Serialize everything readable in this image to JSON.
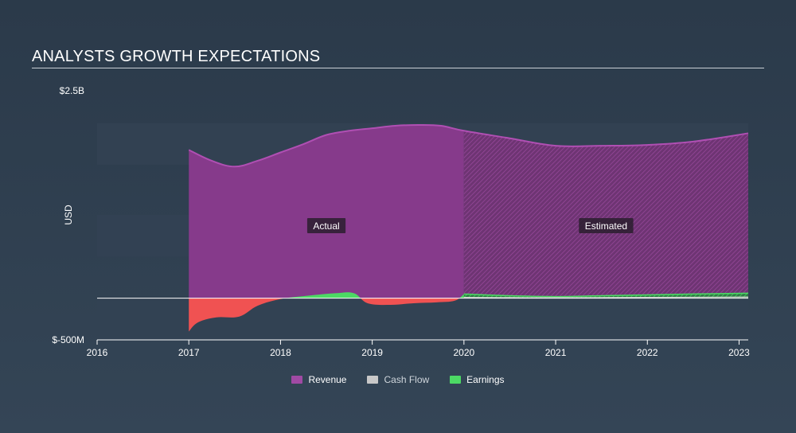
{
  "title": "ANALYSTS GROWTH EXPECTATIONS",
  "colors": {
    "revenue": "#8b3a8e",
    "revenue_line": "#b04fb3",
    "earnings_pos": "#4cd964",
    "earnings_neg": "#f05252",
    "cashflow": "#c8c8c8",
    "band": "#324253"
  },
  "chart_data": {
    "type": "area",
    "title": "ANALYSTS GROWTH EXPECTATIONS",
    "ylabel": "USD",
    "y_tick_labels": [
      "$2.5B",
      "$-500M"
    ],
    "ylim": [
      -500,
      2500
    ],
    "y_unit": "USD millions",
    "xlim": [
      2016,
      2023.1
    ],
    "x_ticks": [
      2016,
      2017,
      2018,
      2019,
      2020,
      2021,
      2022,
      2023
    ],
    "x_tick_labels": [
      "2016",
      "2017",
      "2018",
      "2019",
      "2020",
      "2021",
      "2022",
      "2023"
    ],
    "actual_end": 2020,
    "annotations": [
      "Actual",
      "Estimated"
    ],
    "legend": [
      "Revenue",
      "Cash Flow",
      "Earnings"
    ],
    "series": [
      {
        "name": "Revenue",
        "x": [
          2017,
          2017.25,
          2017.5,
          2017.75,
          2018,
          2018.25,
          2018.5,
          2018.75,
          2019,
          2019.25,
          2019.5,
          2019.75,
          2020,
          2020.5,
          2021,
          2021.5,
          2022,
          2022.5,
          2023.1
        ],
        "values": [
          1780,
          1650,
          1580,
          1650,
          1750,
          1850,
          1960,
          2010,
          2040,
          2070,
          2080,
          2070,
          2010,
          1920,
          1830,
          1830,
          1840,
          1880,
          1980
        ]
      },
      {
        "name": "Earnings",
        "x": [
          2017,
          2017.1,
          2017.3,
          2017.55,
          2017.75,
          2018,
          2018.3,
          2018.6,
          2018.8,
          2018.95,
          2019.2,
          2019.45,
          2019.7,
          2019.9,
          2020,
          2020.5,
          2021,
          2021.5,
          2022,
          2022.5,
          2023.1
        ],
        "values": [
          -400,
          -290,
          -230,
          -220,
          -90,
          -10,
          30,
          60,
          60,
          -60,
          -80,
          -60,
          -50,
          -30,
          50,
          30,
          20,
          30,
          40,
          50,
          60
        ]
      },
      {
        "name": "Cash Flow",
        "x": [
          2020,
          2021,
          2022,
          2023.1
        ],
        "values": [
          10,
          5,
          10,
          15
        ]
      }
    ]
  }
}
